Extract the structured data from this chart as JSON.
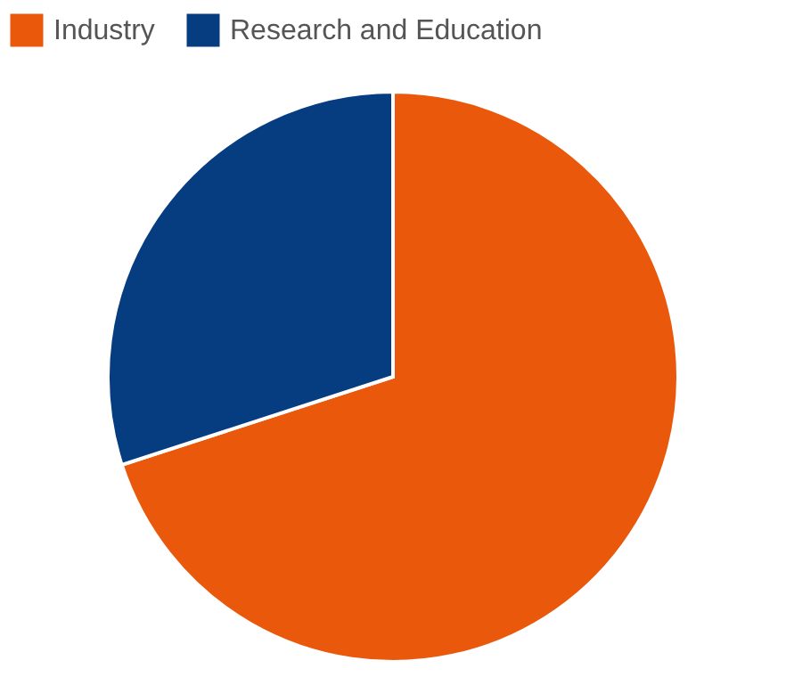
{
  "chart_data": {
    "type": "pie",
    "categories": [
      "Industry",
      "Research and Education"
    ],
    "values": [
      70,
      30
    ],
    "colors": [
      "#ea580c",
      "#063d80"
    ],
    "legend": "top"
  }
}
